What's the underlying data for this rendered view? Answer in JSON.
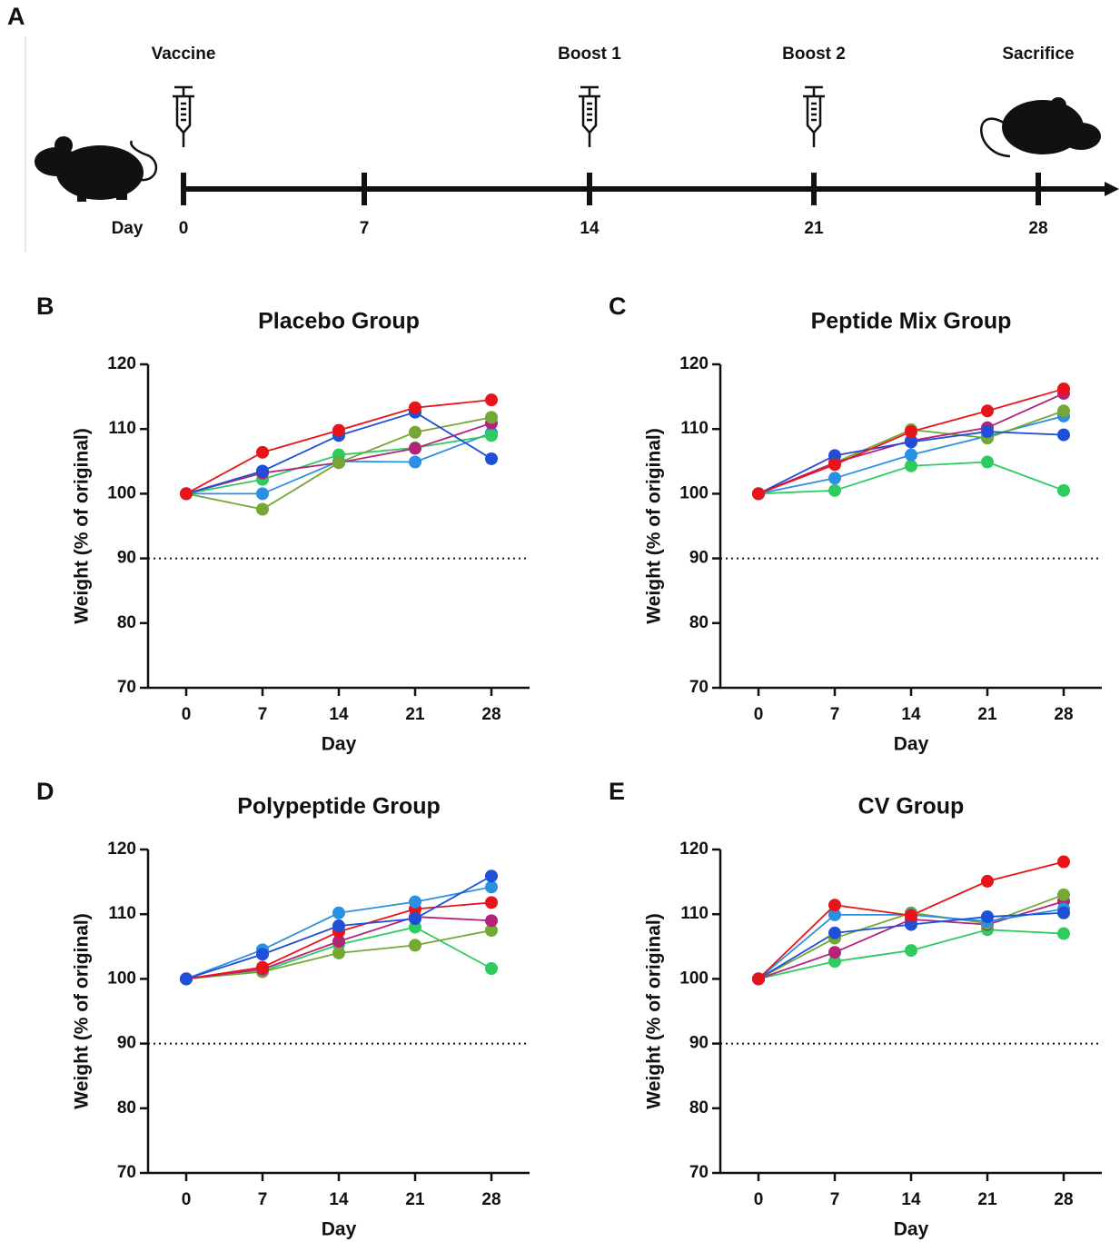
{
  "timeline": {
    "panel_label": "A",
    "axis_label": "Day",
    "ticks": [
      "0",
      "7",
      "14",
      "21",
      "28"
    ],
    "events": [
      "Vaccine",
      "Boost 1",
      "Boost 2",
      "Sacrifice"
    ]
  },
  "chart_data": [
    {
      "type": "line",
      "panel_label": "B",
      "title": "Placebo Group",
      "xlabel": "Day",
      "ylabel": "Weight (% of original)",
      "x": [
        0,
        7,
        14,
        21,
        28
      ],
      "xlim": [
        -3.5,
        31.5
      ],
      "xticks": [
        0,
        7,
        14,
        21,
        28
      ],
      "ylim": [
        70,
        120
      ],
      "yticks": [
        70,
        80,
        90,
        100,
        110,
        120
      ],
      "hline": 90,
      "series": [
        {
          "color": "#2b8fe3",
          "values": [
            100,
            100,
            105,
            104.9,
            109.4
          ]
        },
        {
          "color": "#2ecc5f",
          "values": [
            100,
            102.2,
            106,
            107.1,
            109
          ]
        },
        {
          "color": "#b5227a",
          "values": [
            100,
            103.2,
            104.8,
            107,
            110.9
          ]
        },
        {
          "color": "#74a734",
          "values": [
            100,
            97.6,
            104.8,
            109.5,
            111.8
          ]
        },
        {
          "color": "#1f4fd6",
          "values": [
            100,
            103.5,
            109,
            112.6,
            105.4
          ]
        },
        {
          "color": "#e8141a",
          "values": [
            100,
            106.4,
            109.8,
            113.3,
            114.5
          ]
        }
      ]
    },
    {
      "type": "line",
      "panel_label": "C",
      "title": "Peptide Mix Group",
      "xlabel": "Day",
      "ylabel": "Weight (% of original)",
      "x": [
        0,
        7,
        14,
        21,
        28
      ],
      "xlim": [
        -3.5,
        31.5
      ],
      "xticks": [
        0,
        7,
        14,
        21,
        28
      ],
      "ylim": [
        70,
        120
      ],
      "yticks": [
        70,
        80,
        90,
        100,
        110,
        120
      ],
      "hline": 90,
      "series": [
        {
          "color": "#2ecc5f",
          "values": [
            100,
            100.5,
            104.3,
            104.9,
            100.5
          ]
        },
        {
          "color": "#2b8fe3",
          "values": [
            100,
            102.4,
            106,
            108.9,
            112
          ]
        },
        {
          "color": "#74a734",
          "values": [
            100,
            104.8,
            109.9,
            108.6,
            112.8
          ]
        },
        {
          "color": "#b5227a",
          "values": [
            100,
            104.8,
            108.2,
            110.2,
            115.5
          ]
        },
        {
          "color": "#1f4fd6",
          "values": [
            100,
            105.9,
            108,
            109.6,
            109.1
          ]
        },
        {
          "color": "#e8141a",
          "values": [
            100,
            104.5,
            109.6,
            112.8,
            116.2
          ]
        }
      ]
    },
    {
      "type": "line",
      "panel_label": "D",
      "title": "Polypeptide Group",
      "xlabel": "Day",
      "ylabel": "Weight (% of original)",
      "x": [
        0,
        7,
        14,
        21,
        28
      ],
      "xlim": [
        -3.5,
        31.5
      ],
      "xticks": [
        0,
        7,
        14,
        21,
        28
      ],
      "ylim": [
        70,
        120
      ],
      "yticks": [
        70,
        80,
        90,
        100,
        110,
        120
      ],
      "hline": 90,
      "series": [
        {
          "color": "#2ecc5f",
          "values": [
            100,
            101.2,
            105.3,
            108,
            101.6
          ]
        },
        {
          "color": "#74a734",
          "values": [
            100,
            101.1,
            104,
            105.2,
            107.5
          ]
        },
        {
          "color": "#b5227a",
          "values": [
            100,
            101.5,
            105.8,
            109.6,
            109
          ]
        },
        {
          "color": "#e8141a",
          "values": [
            100,
            101.8,
            107.3,
            110.8,
            111.8
          ]
        },
        {
          "color": "#2b8fe3",
          "values": [
            100,
            104.5,
            110.2,
            111.9,
            114.2
          ]
        },
        {
          "color": "#1f4fd6",
          "values": [
            100,
            103.8,
            108.2,
            109.3,
            115.9
          ]
        }
      ]
    },
    {
      "type": "line",
      "panel_label": "E",
      "title": "CV Group",
      "xlabel": "Day",
      "ylabel": "Weight (% of original)",
      "x": [
        0,
        7,
        14,
        21,
        28
      ],
      "xlim": [
        -3.5,
        31.5
      ],
      "xticks": [
        0,
        7,
        14,
        21,
        28
      ],
      "ylim": [
        70,
        120
      ],
      "yticks": [
        70,
        80,
        90,
        100,
        110,
        120
      ],
      "hline": 90,
      "series": [
        {
          "color": "#2ecc5f",
          "values": [
            100,
            102.7,
            104.4,
            107.6,
            107
          ]
        },
        {
          "color": "#b5227a",
          "values": [
            100,
            104.1,
            109.2,
            108.4,
            112
          ]
        },
        {
          "color": "#74a734",
          "values": [
            100,
            106.3,
            110.2,
            108.6,
            113
          ]
        },
        {
          "color": "#2b8fe3",
          "values": [
            100,
            109.9,
            109.9,
            108.9,
            110.8
          ]
        },
        {
          "color": "#1f4fd6",
          "values": [
            100,
            107.1,
            108.4,
            109.6,
            110.2
          ]
        },
        {
          "color": "#e8141a",
          "values": [
            100,
            111.4,
            109.8,
            115.1,
            118.1
          ]
        }
      ]
    }
  ]
}
